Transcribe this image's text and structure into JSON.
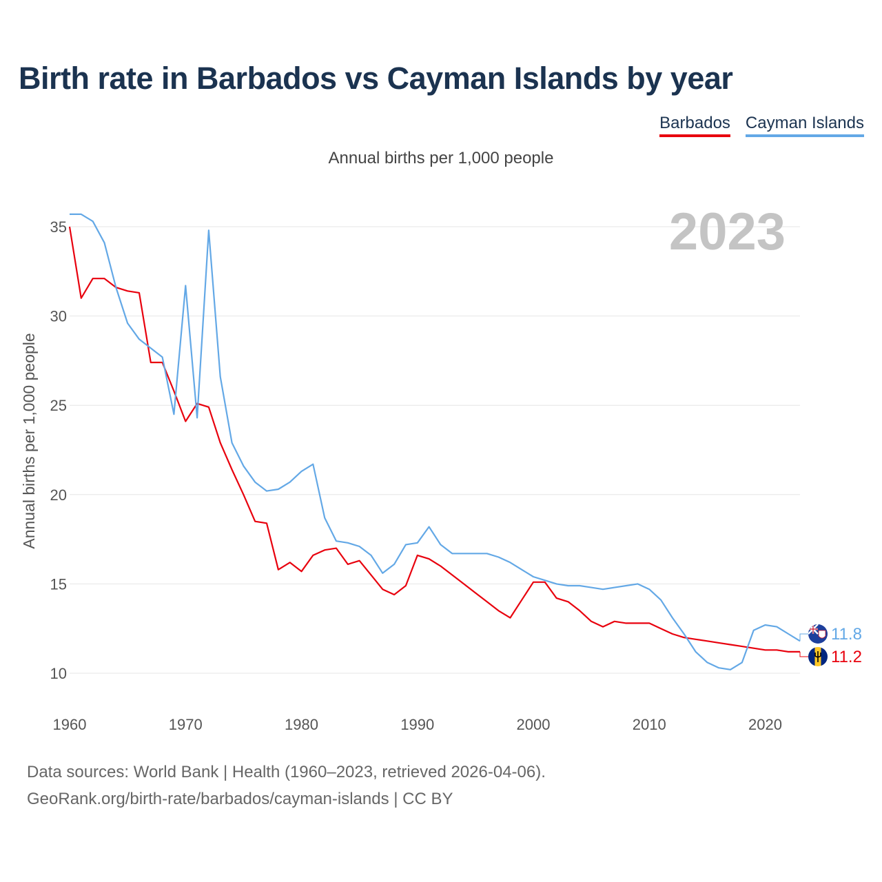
{
  "title": "Birth rate in Barbados vs Cayman Islands by year",
  "subtitle": "Annual births per 1,000 people",
  "legend": [
    {
      "label": "Barbados",
      "color": "#e8000d"
    },
    {
      "label": "Cayman Islands",
      "color": "#63a8e6"
    }
  ],
  "footer": {
    "line1": "Data sources: World Bank | Health (1960–2023, retrieved 2026-04-06).",
    "line2": "GeoRank.org/birth-rate/barbados/cayman-islands | CC BY"
  },
  "chart_data": {
    "type": "line",
    "ylabel": "Annual births per 1,000 people",
    "xlim": [
      1960,
      2023
    ],
    "ylim": [
      10,
      35
    ],
    "xticks": [
      1960,
      1970,
      1980,
      1990,
      2000,
      2010,
      2020
    ],
    "yticks": [
      10,
      15,
      20,
      25,
      30,
      35
    ],
    "grid": true,
    "watermark": "2023",
    "x": [
      1960,
      1961,
      1962,
      1963,
      1964,
      1965,
      1966,
      1967,
      1968,
      1969,
      1970,
      1971,
      1972,
      1973,
      1974,
      1975,
      1976,
      1977,
      1978,
      1979,
      1980,
      1981,
      1982,
      1983,
      1984,
      1985,
      1986,
      1987,
      1988,
      1989,
      1990,
      1991,
      1992,
      1993,
      1994,
      1995,
      1996,
      1997,
      1998,
      1999,
      2000,
      2001,
      2002,
      2003,
      2004,
      2005,
      2006,
      2007,
      2008,
      2009,
      2010,
      2011,
      2012,
      2013,
      2014,
      2015,
      2016,
      2017,
      2018,
      2019,
      2020,
      2021,
      2022,
      2023
    ],
    "series": [
      {
        "name": "Barbados",
        "color": "#e8000d",
        "end_label": "11.2",
        "flag": "barbados-flag-icon",
        "values": [
          35.0,
          31.0,
          32.1,
          32.1,
          31.6,
          31.4,
          31.3,
          27.4,
          27.4,
          25.8,
          24.1,
          25.1,
          24.9,
          22.9,
          21.4,
          20.0,
          18.5,
          18.4,
          15.8,
          16.2,
          15.7,
          16.6,
          16.9,
          17.0,
          16.1,
          16.3,
          15.5,
          14.7,
          14.4,
          14.9,
          16.6,
          16.4,
          16.0,
          15.5,
          15.0,
          14.5,
          14.0,
          13.5,
          13.1,
          14.1,
          15.1,
          15.1,
          14.2,
          14.0,
          13.5,
          12.9,
          12.6,
          12.9,
          12.8,
          12.8,
          12.8,
          12.5,
          12.2,
          12.0,
          11.9,
          11.8,
          11.7,
          11.6,
          11.5,
          11.4,
          11.3,
          11.3,
          11.2,
          11.2
        ]
      },
      {
        "name": "Cayman Islands",
        "color": "#63a8e6",
        "end_label": "11.8",
        "flag": "cayman-islands-flag-icon",
        "values": [
          35.7,
          35.7,
          35.3,
          34.1,
          31.6,
          29.6,
          28.7,
          28.2,
          27.7,
          24.5,
          31.7,
          24.3,
          34.8,
          26.6,
          22.9,
          21.6,
          20.7,
          20.2,
          20.3,
          20.7,
          21.3,
          21.7,
          18.7,
          17.4,
          17.3,
          17.1,
          16.6,
          15.6,
          16.1,
          17.2,
          17.3,
          18.2,
          17.2,
          16.7,
          16.7,
          16.7,
          16.7,
          16.5,
          16.2,
          15.8,
          15.4,
          15.2,
          15.0,
          14.9,
          14.9,
          14.8,
          14.7,
          14.8,
          14.9,
          15.0,
          14.7,
          14.1,
          13.1,
          12.2,
          11.2,
          10.6,
          10.3,
          10.2,
          10.6,
          12.4,
          12.7,
          12.6,
          12.2,
          11.8
        ]
      }
    ]
  }
}
